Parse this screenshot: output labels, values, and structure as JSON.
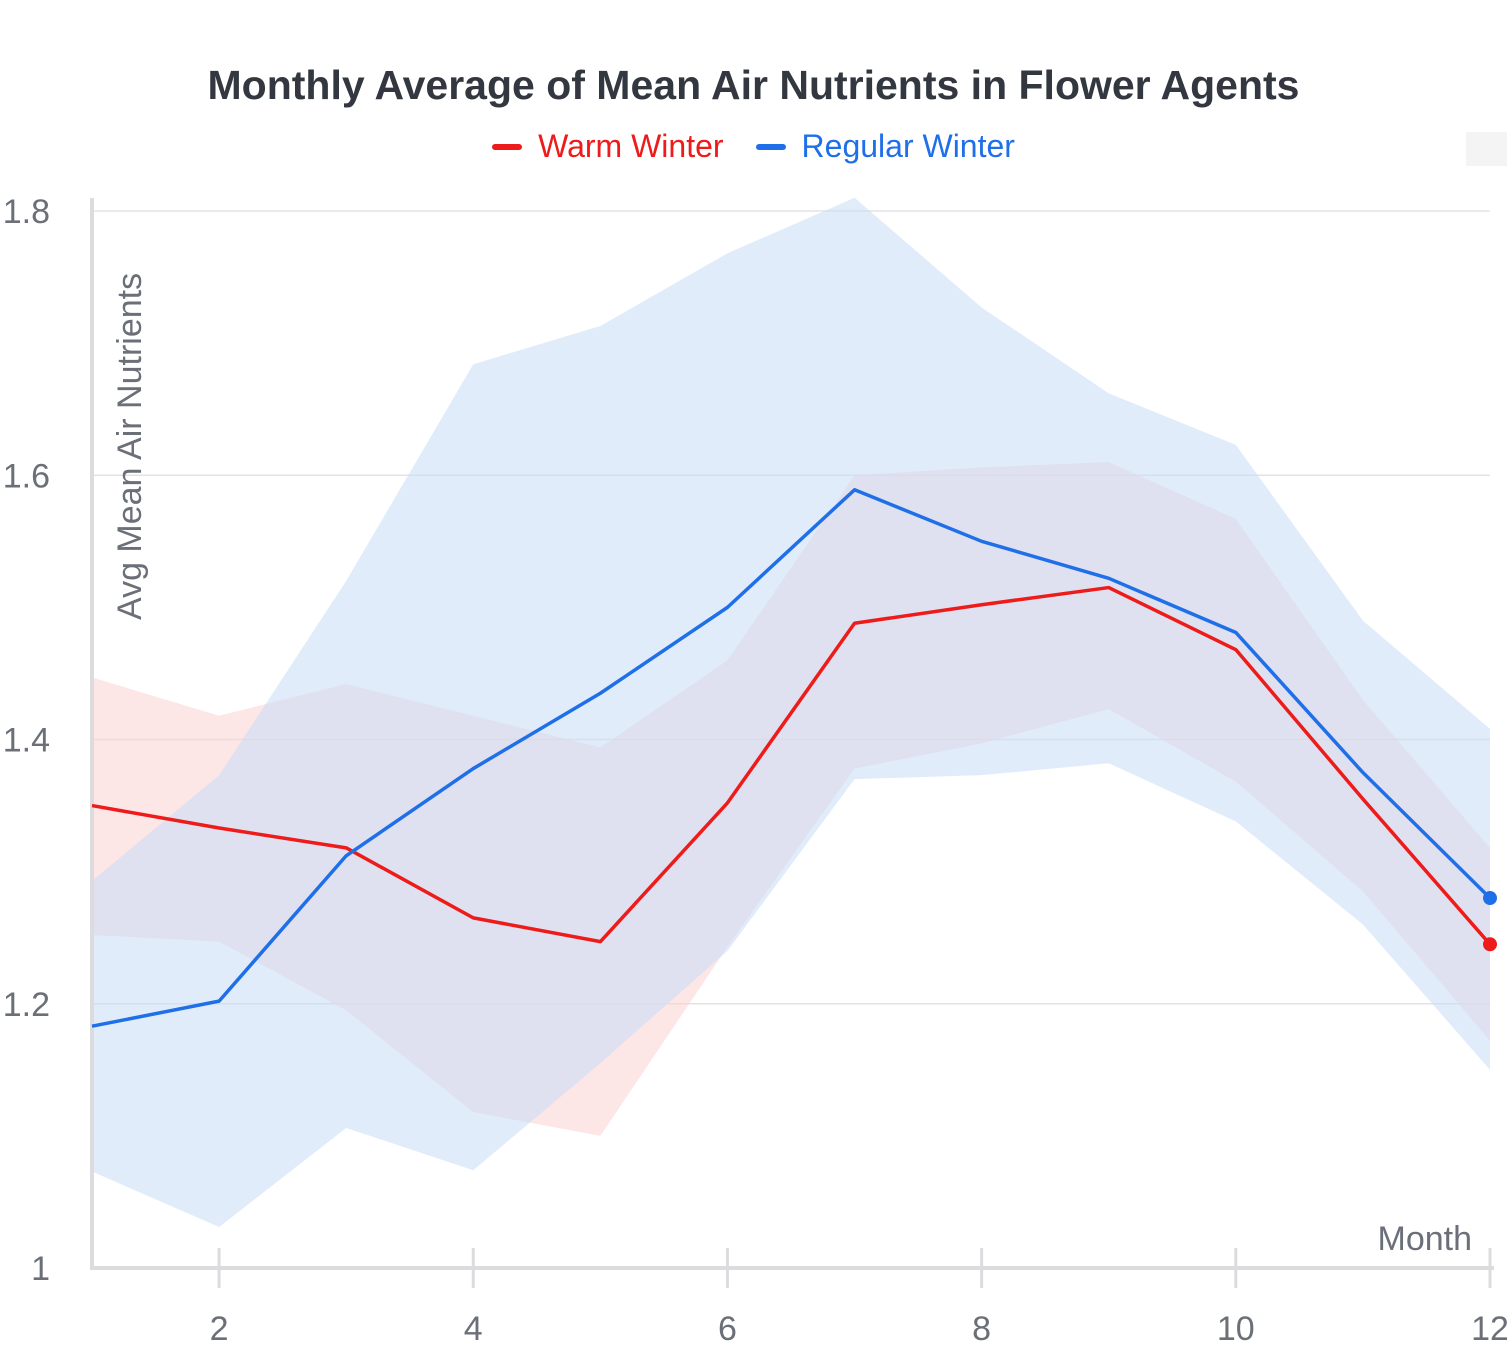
{
  "chart_data": {
    "type": "line",
    "title": "Monthly Average of Mean Air Nutrients in Flower Agents",
    "xlabel": "Month",
    "ylabel": "Avg Mean Air Nutrients",
    "xlim": [
      1,
      12
    ],
    "ylim": [
      1,
      1.8
    ],
    "x_ticks": [
      2,
      4,
      6,
      8,
      10,
      12
    ],
    "y_ticks": [
      1,
      1.2,
      1.4,
      1.6,
      1.8
    ],
    "x_tick_labels": [
      "2",
      "4",
      "6",
      "8",
      "10",
      "12"
    ],
    "y_tick_labels": [
      "1",
      "1.2",
      "1.4",
      "1.6",
      "1.8"
    ],
    "grid": true,
    "legend_position": "top-center",
    "x": [
      1,
      2,
      3,
      4,
      5,
      6,
      7,
      8,
      9,
      10,
      11,
      12
    ],
    "series": [
      {
        "name": "Warm Winter",
        "color": "#ee1b1b",
        "band_color": "#fbd2d2",
        "values": [
          1.35,
          1.333,
          1.318,
          1.265,
          1.247,
          1.352,
          1.488,
          1.502,
          1.515,
          1.468,
          1.355,
          1.245
        ],
        "upper": [
          1.447,
          1.418,
          1.442,
          1.418,
          1.394,
          1.46,
          1.6,
          1.606,
          1.61,
          1.567,
          1.43,
          1.318
        ],
        "lower": [
          1.252,
          1.247,
          1.195,
          1.118,
          1.1,
          1.243,
          1.378,
          1.397,
          1.423,
          1.368,
          1.285,
          1.172
        ]
      },
      {
        "name": "Regular Winter",
        "color": "#1f6fe8",
        "band_color": "#c9dcf8",
        "values": [
          1.183,
          1.202,
          1.312,
          1.378,
          1.435,
          1.5,
          1.589,
          1.55,
          1.522,
          1.481,
          1.375,
          1.28
        ],
        "upper": [
          1.293,
          1.373,
          1.52,
          1.684,
          1.713,
          1.768,
          1.81,
          1.727,
          1.662,
          1.623,
          1.49,
          1.408
        ],
        "lower": [
          1.073,
          1.031,
          1.106,
          1.074,
          1.155,
          1.24,
          1.37,
          1.373,
          1.382,
          1.338,
          1.26,
          1.15
        ]
      }
    ]
  }
}
